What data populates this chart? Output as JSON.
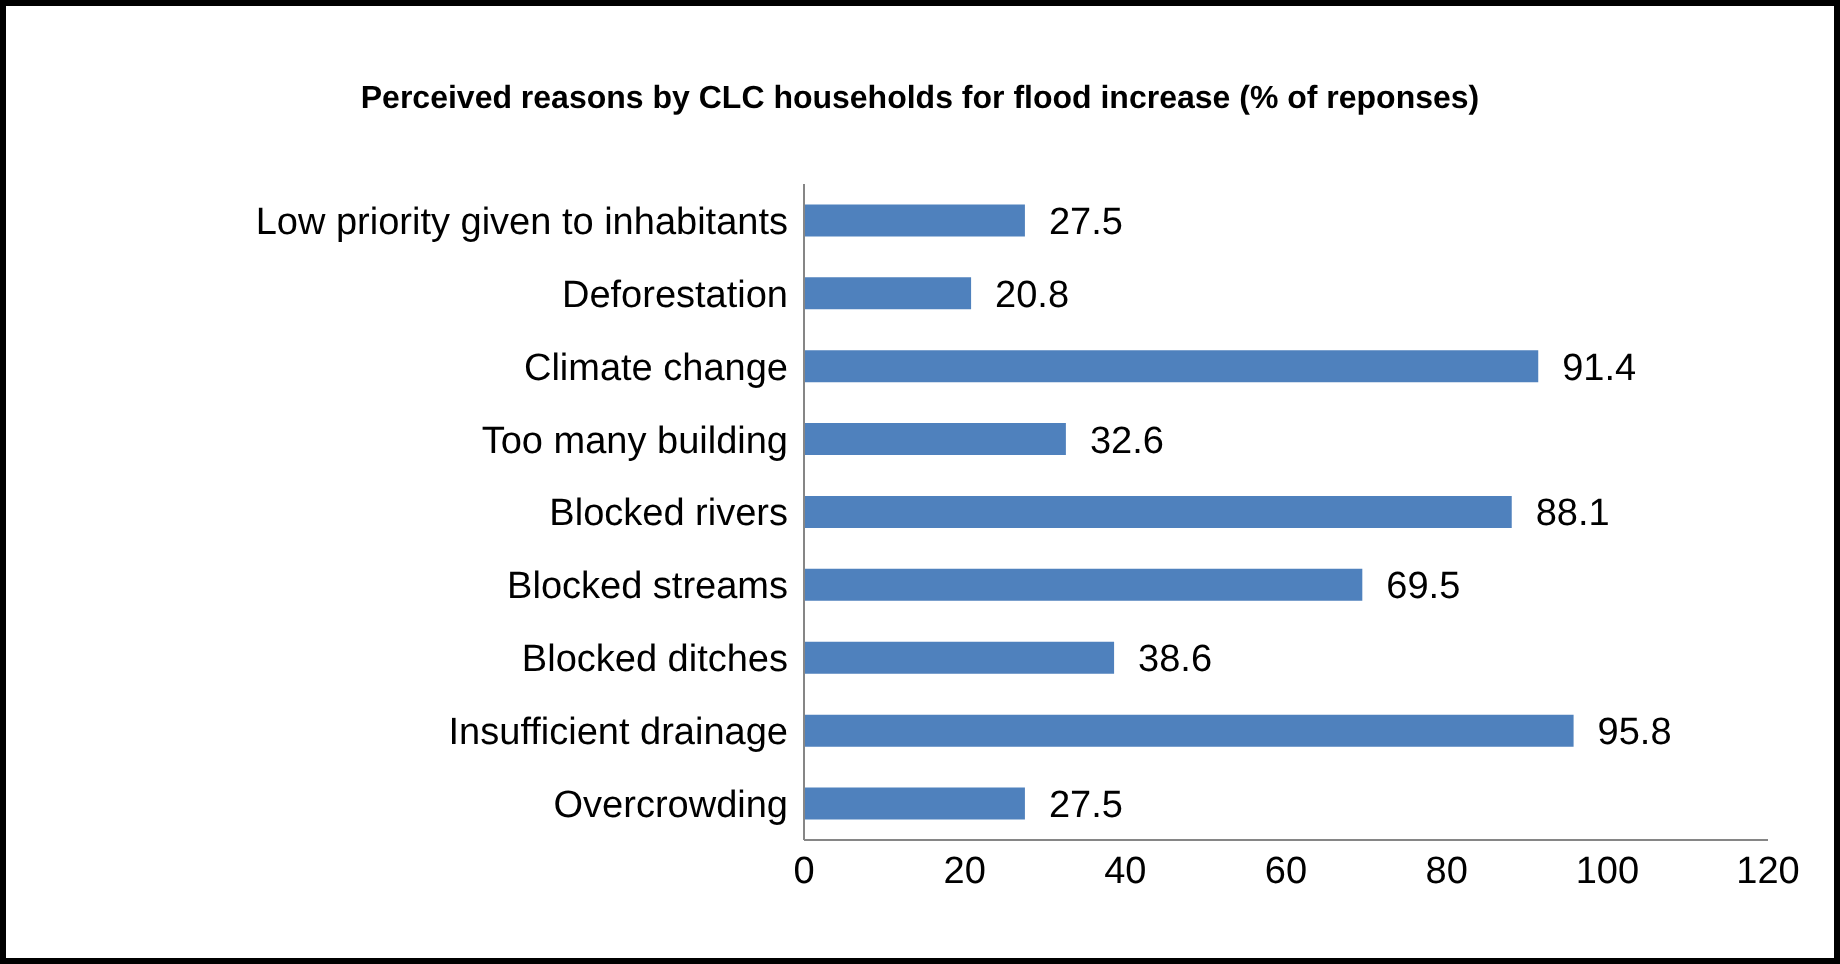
{
  "chart_data": {
    "type": "bar",
    "orientation": "horizontal",
    "title": "Perceived reasons by CLC households for flood increase (% of reponses)",
    "categories": [
      "Low priority given to inhabitants",
      "Deforestation",
      "Climate change",
      "Too many building",
      "Blocked rivers",
      "Blocked streams",
      "Blocked ditches",
      "Insufficient drainage",
      "Overcrowding"
    ],
    "values": [
      27.5,
      20.8,
      91.4,
      32.6,
      88.1,
      69.5,
      38.6,
      95.8,
      27.5
    ],
    "color": "#4f81bd",
    "xlim": [
      0,
      120
    ],
    "xticks": [
      0,
      20,
      40,
      60,
      80,
      100,
      120
    ],
    "data_labels": true
  }
}
